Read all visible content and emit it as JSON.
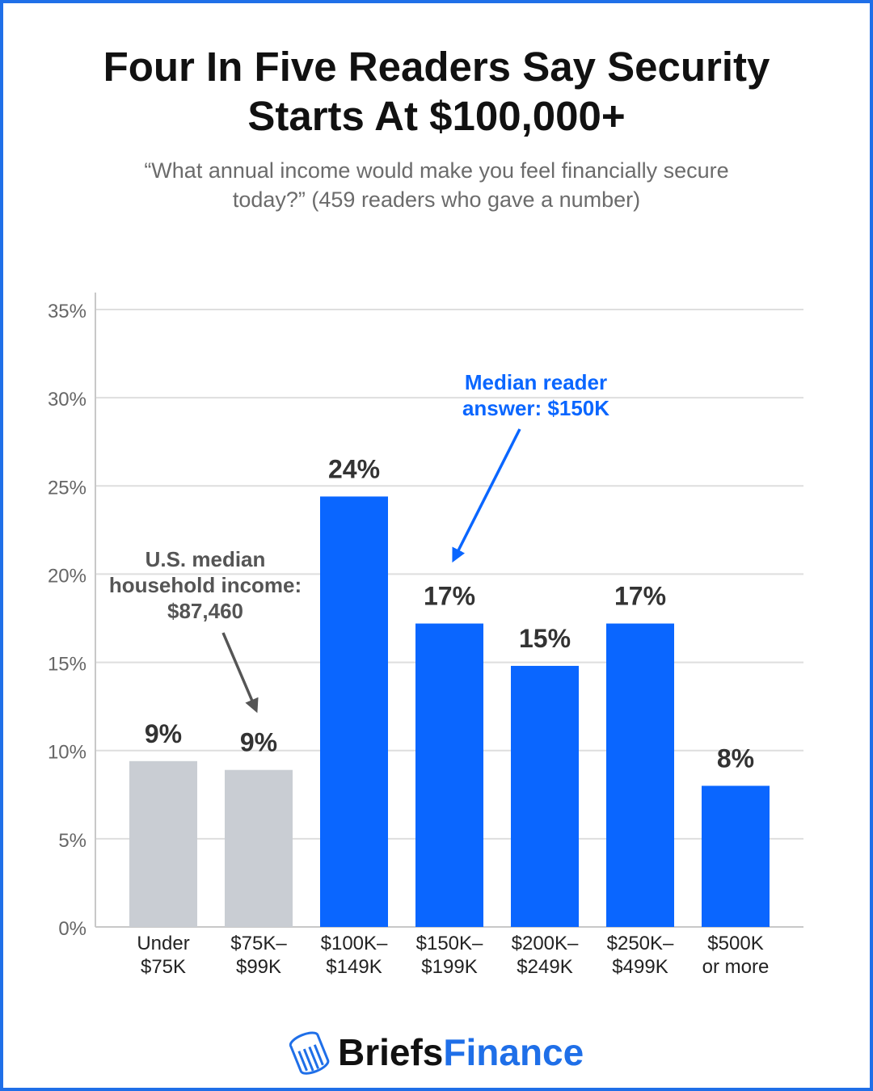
{
  "header": {
    "title_line1": "Four In Five Readers Say Security",
    "title_line2": "Starts At $100,000+",
    "subtitle_line1": "“What annual income would make you feel financially secure",
    "subtitle_line2": "today?” (459 readers who gave a number)"
  },
  "colors": {
    "highlight": "#0a66ff",
    "muted": "#c9cdd3",
    "frame": "#1f6fe8",
    "annotation_blue": "#0a66ff",
    "annotation_gray": "#555555"
  },
  "chart_data": {
    "type": "bar",
    "categories": [
      [
        "Under",
        "$75K"
      ],
      [
        "$75K–",
        "$99K"
      ],
      [
        "$100K–",
        "$149K"
      ],
      [
        "$150K–",
        "$199K"
      ],
      [
        "$200K–",
        "$249K"
      ],
      [
        "$250K–",
        "$499K"
      ],
      [
        "$500K",
        "or more"
      ]
    ],
    "values": [
      9.4,
      8.9,
      24.4,
      17.2,
      14.8,
      17.2,
      8.0
    ],
    "value_labels": [
      "9%",
      "9%",
      "24%",
      "17%",
      "15%",
      "17%",
      "8%"
    ],
    "highlighted": [
      false,
      false,
      true,
      true,
      true,
      true,
      true
    ],
    "ylim": [
      0,
      35
    ],
    "yticks": [
      0,
      5,
      10,
      15,
      20,
      25,
      30,
      35
    ],
    "ytick_labels": [
      "0%",
      "5%",
      "10%",
      "15%",
      "20%",
      "25%",
      "30%",
      "35%"
    ],
    "grid": true,
    "annotations": [
      {
        "lines": [
          "U.S. median",
          "household income:",
          "$87,460"
        ],
        "color": "gray",
        "points_to_category": 1
      },
      {
        "lines": [
          "Median reader",
          "answer: $150K"
        ],
        "color": "blue",
        "points_to_category": 3
      }
    ]
  },
  "brand": {
    "name_part1": "Briefs",
    "name_part2": "Finance",
    "logo_icon": "stack-of-coins-icon"
  }
}
